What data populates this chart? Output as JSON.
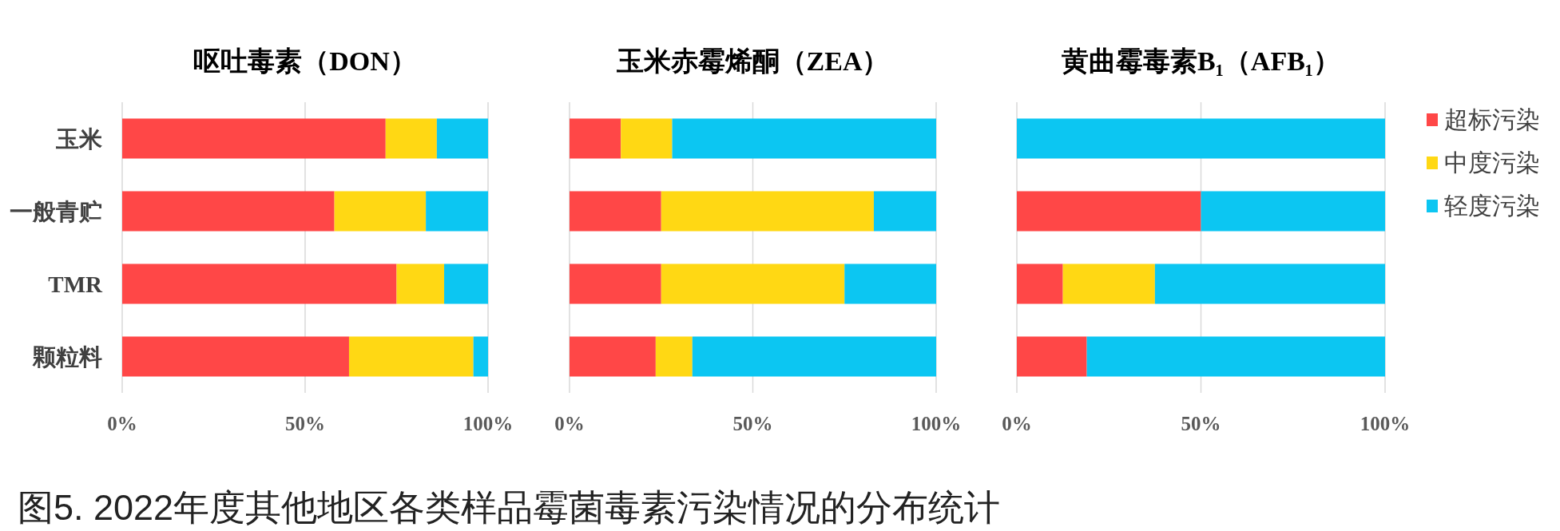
{
  "chart_data": [
    {
      "type": "bar",
      "orientation": "horizontal",
      "stacked": true,
      "title": "呕吐毒素（DON）",
      "categories": [
        "玉米",
        "一般青贮",
        "TMR",
        "颗粒料"
      ],
      "series": [
        {
          "color": "#ff4747",
          "values": [
            72,
            58,
            75,
            62
          ]
        },
        {
          "color": "#ffd814",
          "values": [
            14,
            25,
            13,
            34
          ]
        },
        {
          "color": "#0cc6f2",
          "values": [
            14,
            17,
            12,
            4
          ]
        }
      ],
      "xlim": [
        0,
        100
      ],
      "xticks": [
        {
          "value": 0,
          "label": "0%"
        },
        {
          "value": 50,
          "label": "50%"
        },
        {
          "value": 100,
          "label": "100%"
        }
      ],
      "grid": "x",
      "annotations": [
        "图5. 2022年度其他地区各类样品霉菌毒素污染情况的分布统计"
      ]
    },
    {
      "type": "bar",
      "orientation": "horizontal",
      "stacked": true,
      "title": "玉米赤霉烯酮（ZEA）",
      "categories": [
        null,
        null,
        null,
        null
      ],
      "series": [
        {
          "color": "#ff4747",
          "values": [
            14,
            25,
            25,
            23.5
          ]
        },
        {
          "color": "#ffd814",
          "values": [
            14,
            58,
            50,
            10
          ]
        },
        {
          "color": "#0cc6f2",
          "values": [
            72,
            17,
            25,
            66.5
          ]
        }
      ],
      "xlim": [
        0,
        100
      ],
      "xticks": [
        {
          "value": 0,
          "label": "0%"
        },
        {
          "value": 50,
          "label": "50%"
        },
        {
          "value": 100,
          "label": "100%"
        }
      ],
      "grid": "x"
    },
    {
      "type": "bar",
      "orientation": "horizontal",
      "stacked": true,
      "title": "黄曲霉毒素B₁（AFB₁）",
      "categories": [
        null,
        null,
        null,
        null
      ],
      "series": [
        {
          "name": "超标污染",
          "color": "#ff4747",
          "values": [
            0,
            50,
            12.5,
            19
          ]
        },
        {
          "name": "中度污染",
          "color": "#ffd814",
          "values": [
            0,
            0,
            25,
            0
          ]
        },
        {
          "name": "轻度污染",
          "color": "#0cc6f2",
          "values": [
            100,
            50,
            62.5,
            81
          ]
        }
      ],
      "xlim": [
        0,
        100
      ],
      "xticks": [
        {
          "value": 0,
          "label": "0%"
        },
        {
          "value": 50,
          "label": "50%"
        },
        {
          "value": 100,
          "label": "100%"
        }
      ],
      "grid": "x",
      "legend": "right"
    }
  ]
}
